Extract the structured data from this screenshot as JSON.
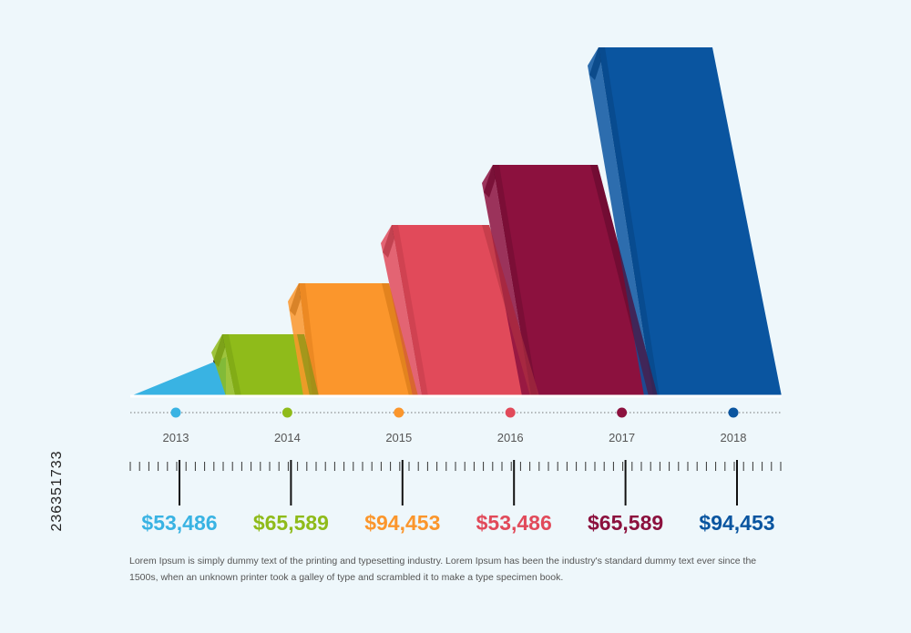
{
  "chart_data": {
    "type": "bar",
    "categories": [
      "2013",
      "2014",
      "2015",
      "2016",
      "2017",
      "2018"
    ],
    "value_labels": [
      "$53,486",
      "$65,589",
      "$94,453",
      "$53,486",
      "$65,589",
      "$94,453"
    ],
    "colors": [
      "#39b3e3",
      "#8fbb1a",
      "#fb962c",
      "#e14a5a",
      "#8c113e",
      "#0a55a0"
    ],
    "shade_colors": [
      "#2585b0",
      "#6a9310",
      "#d07414",
      "#b23442",
      "#5d0a29",
      "#063a70"
    ]
  },
  "description": "Lorem Ipsum is simply dummy text of the printing and typesetting industry. Lorem Ipsum has been the industry's standard dummy text ever since the 1500s, when an unknown printer took a galley of type and scrambled it to make a type specimen book.",
  "watermark_id": "236351733"
}
